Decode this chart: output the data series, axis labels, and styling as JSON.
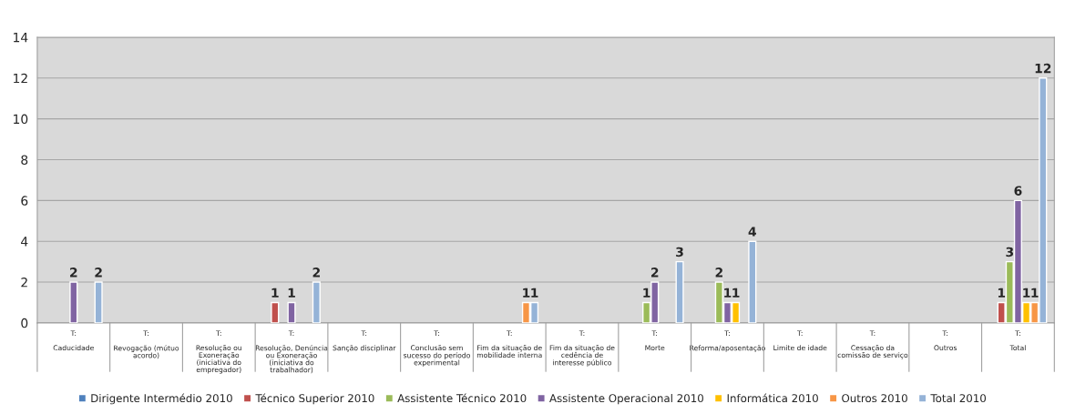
{
  "chart_data": {
    "type": "bar",
    "categories": [
      "T:\n\nCaducidade",
      "T:\n\nRevogação (mútuo\nacordo)",
      "T:\n\nResolução ou\nExoneração\n(iniciativa do\nempregador)",
      "T:\n\nResolução, Denúncia\nou Exoneração\n(iniciativa do\ntrabalhador)",
      "T:\n\nSanção disciplinar",
      "T:\n\nConclusão sem\nsucesso do período\nexperimental",
      "T:\n\nFim da situação de\nmobilidade interna",
      "T:\n\nFim da situação de\ncedência de\ninteresse público",
      "T:\n\nMorte",
      "T:\n\nReforma/aposentação",
      "T:\n\nLimite de idade",
      "T:\n\nCessação da\ncomissão de serviço",
      "T:\n\nOutros",
      "T:\n\nTotal"
    ],
    "series": [
      {
        "name": "Dirigente Intermédio 2010",
        "color": "#4f81bd",
        "values": [
          null,
          null,
          null,
          null,
          null,
          null,
          null,
          null,
          null,
          null,
          null,
          null,
          null,
          null
        ]
      },
      {
        "name": "Técnico Superior 2010",
        "color": "#c0504d",
        "values": [
          null,
          null,
          null,
          1,
          null,
          null,
          null,
          null,
          null,
          null,
          null,
          null,
          null,
          1
        ]
      },
      {
        "name": "Assistente Técnico 2010",
        "color": "#9bbb59",
        "values": [
          null,
          null,
          null,
          null,
          null,
          null,
          null,
          null,
          1,
          2,
          null,
          null,
          null,
          3
        ]
      },
      {
        "name": "Assistente Operacional 2010",
        "color": "#8064a2",
        "values": [
          2,
          null,
          null,
          1,
          null,
          null,
          null,
          null,
          2,
          1,
          null,
          null,
          null,
          6
        ]
      },
      {
        "name": "Informática 2010",
        "color": "#ffc000",
        "values": [
          null,
          null,
          null,
          null,
          null,
          null,
          null,
          null,
          null,
          1,
          null,
          null,
          null,
          1
        ]
      },
      {
        "name": "Outros 2010",
        "color": "#f79646",
        "values": [
          null,
          null,
          null,
          null,
          null,
          null,
          1,
          null,
          null,
          null,
          null,
          null,
          null,
          1
        ]
      },
      {
        "name": "Total 2010",
        "color": "#95b3d7",
        "values": [
          2,
          null,
          null,
          2,
          null,
          null,
          1,
          null,
          3,
          4,
          null,
          null,
          null,
          12
        ]
      }
    ],
    "ylim": [
      0,
      14
    ],
    "yticks": [
      0,
      2,
      4,
      6,
      8,
      10,
      12,
      14
    ],
    "grid": "y",
    "legend": "bottom",
    "data_labels": true
  }
}
